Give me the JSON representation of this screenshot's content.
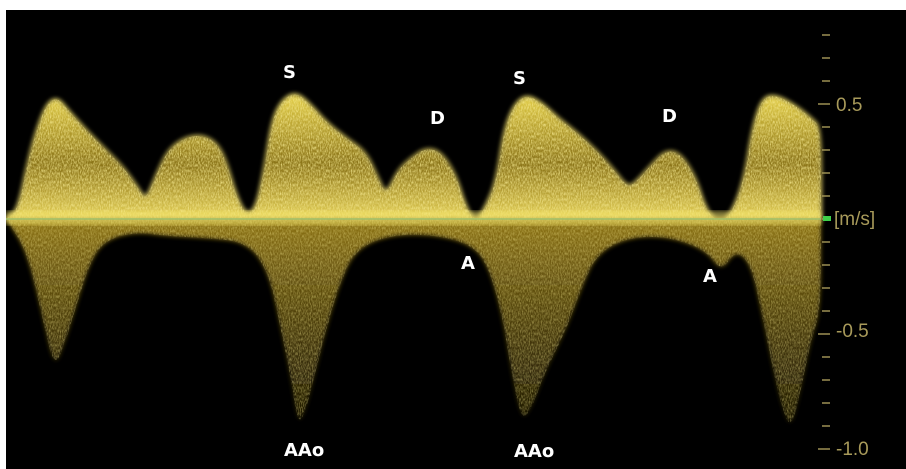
{
  "image": {
    "background": "#000000",
    "signal_color": "#e6d24a",
    "baseline_color": "#9fbf6a",
    "axis_color": "#a89a5a",
    "baseline_marker_color": "#3fcf4a"
  },
  "axis": {
    "unit": "[m/s]",
    "ticks": [
      {
        "value": 0.5,
        "label": "0.5"
      },
      {
        "value": -0.5,
        "label": "-0.5"
      },
      {
        "value": -1.0,
        "label": "-1.0"
      }
    ]
  },
  "labels": {
    "s1": "S",
    "d1": "D",
    "a1": "A",
    "aao1": "AAo",
    "s2": "S",
    "d2": "D",
    "a2": "A",
    "aao2": "AAo"
  }
}
